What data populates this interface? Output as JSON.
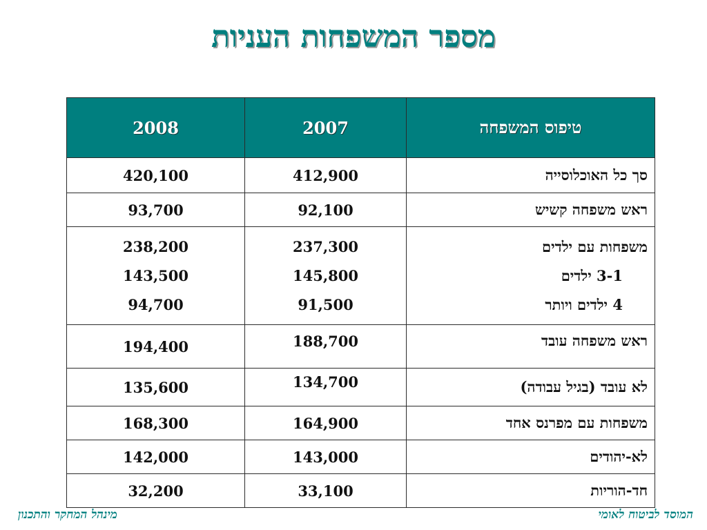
{
  "title": "מספר המשפחות העניות",
  "table": {
    "headers": {
      "col_2008": "2008",
      "col_2007": "2007",
      "col_type": "טיפוס המשפחה"
    },
    "rows": {
      "total": {
        "type": "סך כל האוכלוסייה",
        "v2007": "412,900",
        "v2008": "420,100"
      },
      "elderly": {
        "type": "ראש משפחה קשיש",
        "v2007": "92,100",
        "v2008": "93,700"
      },
      "with_children": {
        "type": "משפחות עם ילדים",
        "sub1_type": "3-1 ילדים",
        "sub2_type": "4 ילדים ויותר",
        "v2007": "237,300",
        "sub1_v2007": "145,800",
        "sub2_v2007": "91,500",
        "v2008": "238,200",
        "sub1_v2008": "143,500",
        "sub2_v2008": "94,700"
      },
      "working_head": {
        "type": "ראש משפחה עובד",
        "v2007": "188,700",
        "v2008": "194,400"
      },
      "not_working": {
        "type": "לא עובד (בגיל עבודה)",
        "v2007": "134,700",
        "v2008": "135,600"
      },
      "single_earner": {
        "type": "משפחות עם מפרנס אחד",
        "v2007": "164,900",
        "v2008": "168,300"
      },
      "non_jewish": {
        "type": "לא-יהודים",
        "v2007": "143,000",
        "v2008": "142,000"
      },
      "single_parent": {
        "type": "חד-הוריות",
        "v2007": "33,100",
        "v2008": "32,200"
      }
    }
  },
  "footer": {
    "left": "מינהל המחקר והתכנון",
    "right": "המוסד לביטוח לאומי"
  },
  "colors": {
    "accent": "#007F7F"
  }
}
